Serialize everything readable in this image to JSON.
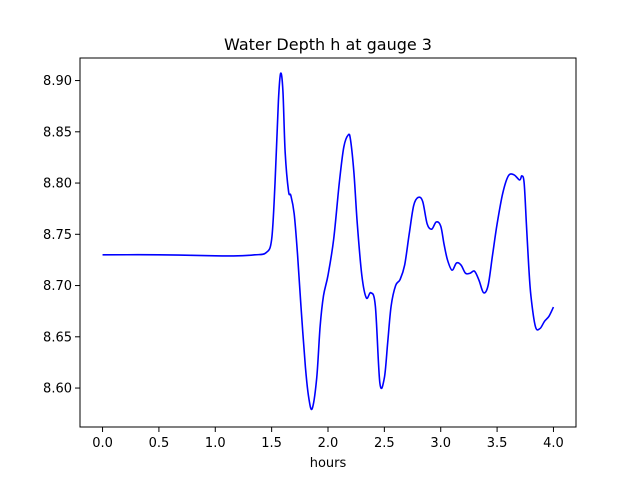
{
  "chart_data": {
    "type": "line",
    "title": "Water Depth h at gauge 3",
    "xlabel": "hours",
    "ylabel": "",
    "xlim": [
      -0.2,
      4.2
    ],
    "ylim": [
      8.562,
      8.922
    ],
    "xticks": [
      0.0,
      0.5,
      1.0,
      1.5,
      2.0,
      2.5,
      3.0,
      3.5,
      4.0
    ],
    "xtick_labels": [
      "0.0",
      "0.5",
      "1.0",
      "1.5",
      "2.0",
      "2.5",
      "3.0",
      "3.5",
      "4.0"
    ],
    "yticks": [
      8.6,
      8.65,
      8.7,
      8.75,
      8.8,
      8.85,
      8.9
    ],
    "ytick_labels": [
      "8.60",
      "8.65",
      "8.70",
      "8.75",
      "8.80",
      "8.85",
      "8.90"
    ],
    "grid": false,
    "series": [
      {
        "color": "#0000ff",
        "x": [
          0.0,
          0.5,
          1.0,
          1.2,
          1.35,
          1.45,
          1.5,
          1.53,
          1.56,
          1.58,
          1.6,
          1.62,
          1.65,
          1.67,
          1.7,
          1.73,
          1.76,
          1.8,
          1.83,
          1.86,
          1.9,
          1.93,
          1.96,
          2.0,
          2.05,
          2.1,
          2.14,
          2.18,
          2.2,
          2.23,
          2.26,
          2.3,
          2.34,
          2.38,
          2.42,
          2.46,
          2.5,
          2.53,
          2.56,
          2.6,
          2.64,
          2.68,
          2.72,
          2.76,
          2.8,
          2.84,
          2.88,
          2.92,
          2.96,
          3.0,
          3.03,
          3.06,
          3.1,
          3.14,
          3.18,
          3.22,
          3.26,
          3.3,
          3.34,
          3.38,
          3.42,
          3.46,
          3.5,
          3.55,
          3.6,
          3.65,
          3.7,
          3.72,
          3.74,
          3.76,
          3.78,
          3.8,
          3.84,
          3.88,
          3.92,
          3.96,
          4.0
        ],
        "y": [
          8.73,
          8.73,
          8.729,
          8.729,
          8.73,
          8.732,
          8.745,
          8.8,
          8.88,
          8.907,
          8.89,
          8.83,
          8.792,
          8.788,
          8.77,
          8.73,
          8.68,
          8.62,
          8.59,
          8.58,
          8.61,
          8.66,
          8.69,
          8.71,
          8.745,
          8.8,
          8.835,
          8.847,
          8.842,
          8.81,
          8.76,
          8.71,
          8.688,
          8.693,
          8.68,
          8.605,
          8.61,
          8.645,
          8.68,
          8.7,
          8.706,
          8.72,
          8.75,
          8.778,
          8.786,
          8.782,
          8.76,
          8.755,
          8.762,
          8.758,
          8.74,
          8.725,
          8.715,
          8.722,
          8.72,
          8.712,
          8.712,
          8.714,
          8.705,
          8.693,
          8.7,
          8.73,
          8.76,
          8.79,
          8.807,
          8.808,
          8.803,
          8.807,
          8.8,
          8.76,
          8.72,
          8.69,
          8.66,
          8.658,
          8.665,
          8.67,
          8.679
        ]
      }
    ]
  }
}
